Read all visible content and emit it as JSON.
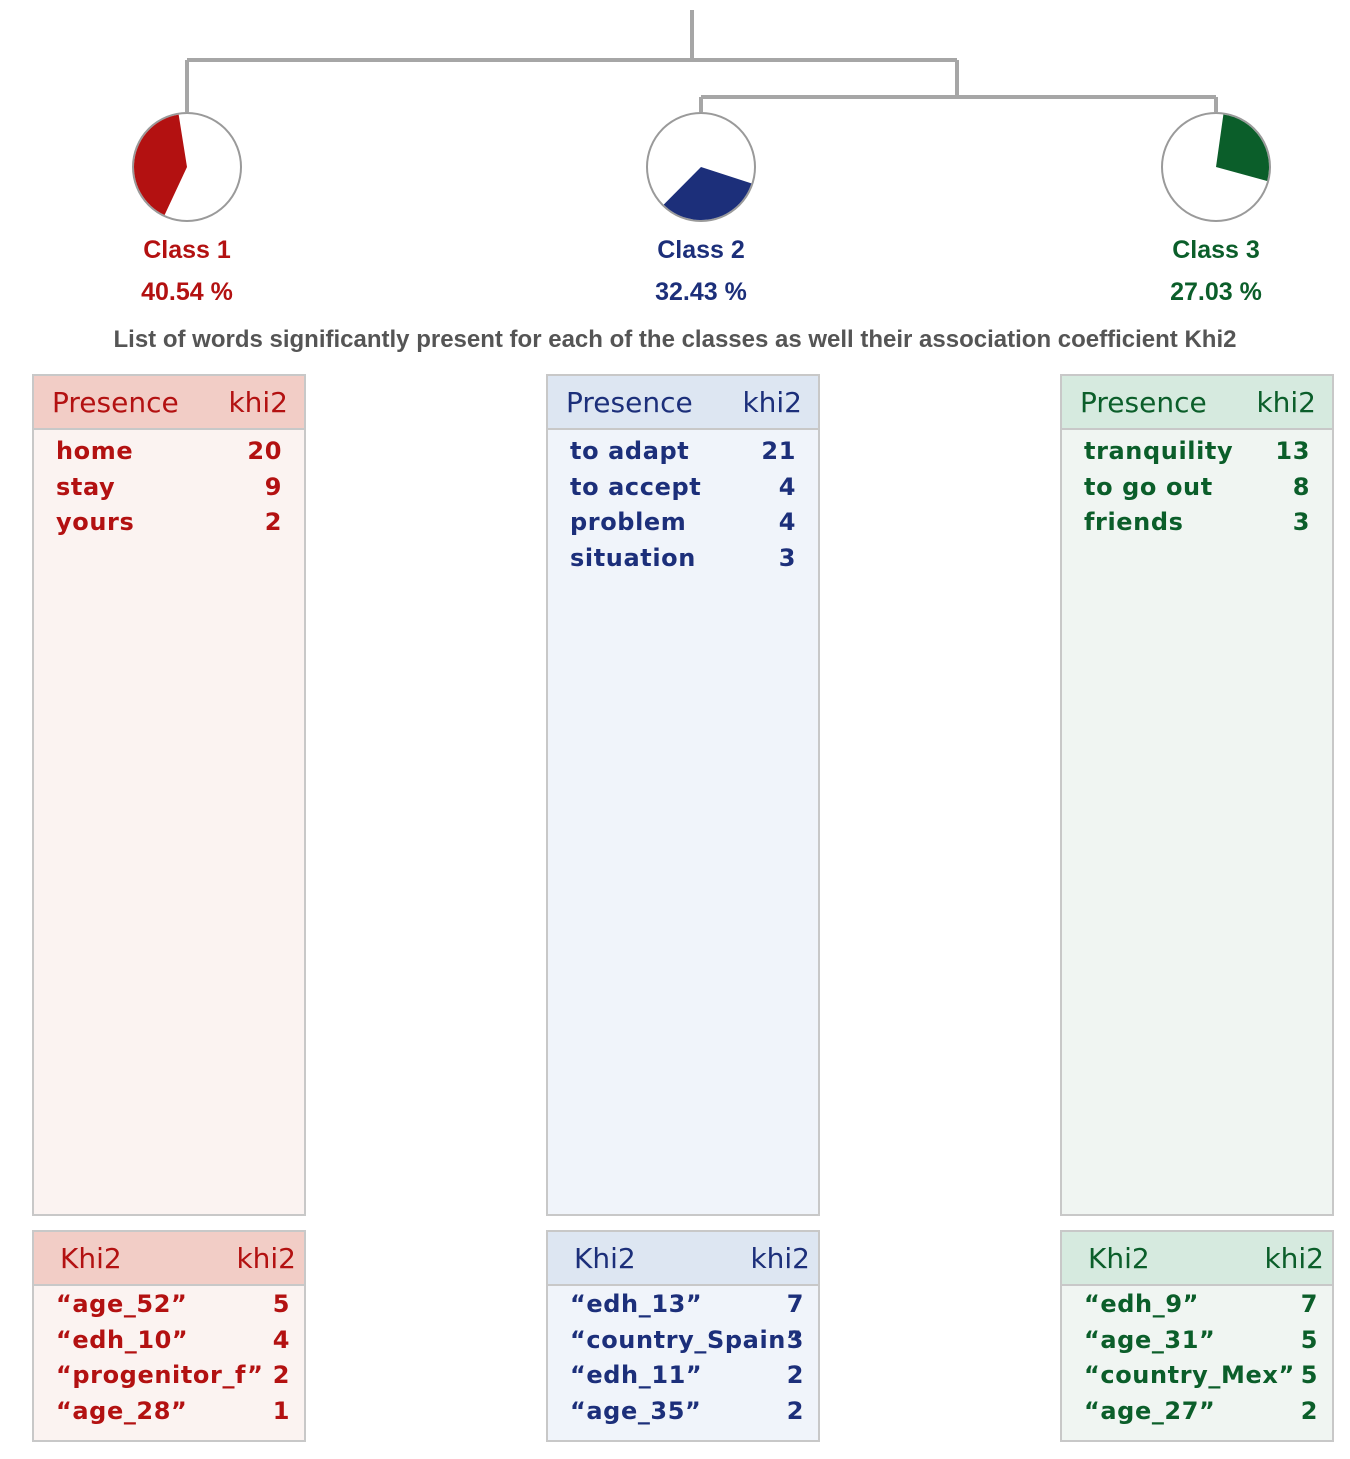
{
  "colors": {
    "class1": "#b31111",
    "class2": "#1c2f7a",
    "class3": "#0b5e2a",
    "tree_line": "#a6a6a6",
    "class1_bg": "#fbf3f1",
    "class1_head": "#f2cdc6",
    "class2_bg": "#f0f4fa",
    "class2_head": "#dde6f2",
    "class3_bg": "#f0f5f2",
    "class3_head": "#d6eadf"
  },
  "subtitle": "List of words significantly present for each of the classes as well their association coefficient Khi2",
  "classes": [
    {
      "label": "Class 1",
      "percent_text": "40.54 %",
      "share": 0.4054,
      "presence": {
        "head_left": "Presence",
        "head_right": "khi2",
        "rows": [
          {
            "word": "home",
            "value": "20"
          },
          {
            "word": "stay",
            "value": "9"
          },
          {
            "word": "yours",
            "value": "2"
          }
        ]
      },
      "khi2": {
        "head_left": "Khi2",
        "head_right": "khi2",
        "rows": [
          {
            "word": "“age_52”",
            "value": "5"
          },
          {
            "word": "“edh_10”",
            "value": "4"
          },
          {
            "word": "“progenitor_f”",
            "value": "2"
          },
          {
            "word": "“age_28”",
            "value": "1"
          }
        ]
      }
    },
    {
      "label": "Class 2",
      "percent_text": "32.43 %",
      "share": 0.3243,
      "presence": {
        "head_left": "Presence",
        "head_right": "khi2",
        "rows": [
          {
            "word": "to adapt",
            "value": "21"
          },
          {
            "word": "to accept",
            "value": "4"
          },
          {
            "word": "problem",
            "value": "4"
          },
          {
            "word": "situation",
            "value": "3"
          }
        ]
      },
      "khi2": {
        "head_left": "Khi2",
        "head_right": "khi2",
        "rows": [
          {
            "word": "“edh_13”",
            "value": "7"
          },
          {
            "word": "“country_Spain”",
            "value": "3"
          },
          {
            "word": "“edh_11”",
            "value": "2"
          },
          {
            "word": "“age_35”",
            "value": "2"
          }
        ]
      }
    },
    {
      "label": "Class 3",
      "percent_text": "27.03 %",
      "share": 0.2703,
      "presence": {
        "head_left": "Presence",
        "head_right": "khi2",
        "rows": [
          {
            "word": "tranquility",
            "value": "13"
          },
          {
            "word": "to go out",
            "value": "8"
          },
          {
            "word": "friends",
            "value": "3"
          }
        ]
      },
      "khi2": {
        "head_left": "Khi2",
        "head_right": "khi2",
        "rows": [
          {
            "word": "“edh_9”",
            "value": "7"
          },
          {
            "word": "“age_31”",
            "value": "5"
          },
          {
            "word": "“country_Mex”",
            "value": "5"
          },
          {
            "word": "“age_27”",
            "value": "2"
          }
        ]
      }
    }
  ]
}
